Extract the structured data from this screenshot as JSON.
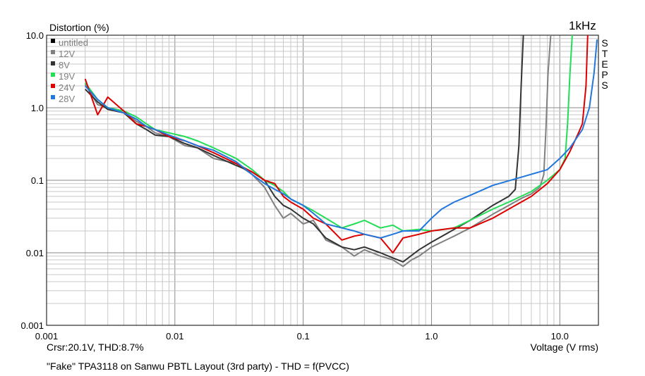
{
  "chart_data": {
    "type": "line",
    "title": "",
    "ylabel": "Distortion (%)",
    "xlabel": "Voltage (V rms)",
    "frequency_label": "1kHz",
    "side_label": "STEPS",
    "x_scale": "log",
    "y_scale": "log",
    "xlim": [
      0.001,
      20
    ],
    "ylim": [
      0.001,
      10
    ],
    "x_ticks": [
      "0.001",
      "0.01",
      "0.1",
      "1.0",
      "10.0"
    ],
    "y_ticks": [
      "10.0",
      "1.0",
      "0.1",
      "0.01",
      "0.001"
    ],
    "grid": true,
    "legend_position": "top-left",
    "cursor_readout": "Crsr:20.1V, THD:8.7%",
    "caption": "\"Fake\" TPA3118 on Sanwu PBTL Layout (3rd party) - THD = f(PVCC)",
    "series": [
      {
        "name": "untitled",
        "color": "#000000",
        "visible": false,
        "points": []
      },
      {
        "name": "12V",
        "color": "#808080",
        "points": [
          [
            0.002,
            2.1
          ],
          [
            0.0025,
            1.1
          ],
          [
            0.003,
            1.0
          ],
          [
            0.004,
            0.9
          ],
          [
            0.005,
            0.65
          ],
          [
            0.006,
            0.55
          ],
          [
            0.007,
            0.45
          ],
          [
            0.009,
            0.4
          ],
          [
            0.012,
            0.3
          ],
          [
            0.015,
            0.28
          ],
          [
            0.02,
            0.2
          ],
          [
            0.03,
            0.17
          ],
          [
            0.04,
            0.12
          ],
          [
            0.05,
            0.08
          ],
          [
            0.06,
            0.045
          ],
          [
            0.07,
            0.03
          ],
          [
            0.08,
            0.035
          ],
          [
            0.1,
            0.025
          ],
          [
            0.12,
            0.028
          ],
          [
            0.15,
            0.015
          ],
          [
            0.2,
            0.012
          ],
          [
            0.25,
            0.009
          ],
          [
            0.3,
            0.011
          ],
          [
            0.4,
            0.009
          ],
          [
            0.5,
            0.008
          ],
          [
            0.6,
            0.0065
          ],
          [
            0.7,
            0.008
          ],
          [
            0.8,
            0.009
          ],
          [
            1.0,
            0.012
          ],
          [
            1.2,
            0.014
          ],
          [
            1.5,
            0.017
          ],
          [
            2.0,
            0.022
          ],
          [
            3.0,
            0.034
          ],
          [
            4.0,
            0.045
          ],
          [
            5.0,
            0.056
          ],
          [
            6.0,
            0.065
          ],
          [
            7.0,
            0.08
          ],
          [
            7.5,
            0.12
          ],
          [
            7.8,
            0.5
          ],
          [
            8.1,
            3.0
          ],
          [
            8.5,
            10
          ]
        ]
      },
      {
        "name": "8V",
        "color": "#333333",
        "points": [
          [
            0.002,
            1.8
          ],
          [
            0.0025,
            1.2
          ],
          [
            0.003,
            0.95
          ],
          [
            0.004,
            0.85
          ],
          [
            0.005,
            0.6
          ],
          [
            0.006,
            0.5
          ],
          [
            0.007,
            0.42
          ],
          [
            0.009,
            0.4
          ],
          [
            0.012,
            0.32
          ],
          [
            0.015,
            0.28
          ],
          [
            0.02,
            0.22
          ],
          [
            0.03,
            0.16
          ],
          [
            0.04,
            0.13
          ],
          [
            0.05,
            0.1
          ],
          [
            0.06,
            0.06
          ],
          [
            0.07,
            0.045
          ],
          [
            0.08,
            0.04
          ],
          [
            0.1,
            0.03
          ],
          [
            0.12,
            0.025
          ],
          [
            0.15,
            0.016
          ],
          [
            0.2,
            0.012
          ],
          [
            0.25,
            0.011
          ],
          [
            0.3,
            0.012
          ],
          [
            0.4,
            0.01
          ],
          [
            0.5,
            0.0085
          ],
          [
            0.6,
            0.0075
          ],
          [
            0.8,
            0.011
          ],
          [
            1.0,
            0.014
          ],
          [
            1.5,
            0.021
          ],
          [
            2.0,
            0.028
          ],
          [
            3.0,
            0.045
          ],
          [
            4.0,
            0.06
          ],
          [
            4.5,
            0.075
          ],
          [
            4.8,
            0.3
          ],
          [
            5.0,
            2.0
          ],
          [
            5.2,
            10
          ]
        ]
      },
      {
        "name": "19V",
        "color": "#22dd55",
        "points": [
          [
            0.002,
            2.2
          ],
          [
            0.0025,
            1.3
          ],
          [
            0.003,
            1.0
          ],
          [
            0.004,
            0.9
          ],
          [
            0.005,
            0.75
          ],
          [
            0.006,
            0.6
          ],
          [
            0.007,
            0.5
          ],
          [
            0.009,
            0.45
          ],
          [
            0.012,
            0.4
          ],
          [
            0.015,
            0.35
          ],
          [
            0.02,
            0.28
          ],
          [
            0.03,
            0.2
          ],
          [
            0.04,
            0.14
          ],
          [
            0.05,
            0.1
          ],
          [
            0.06,
            0.085
          ],
          [
            0.07,
            0.07
          ],
          [
            0.08,
            0.055
          ],
          [
            0.1,
            0.045
          ],
          [
            0.12,
            0.038
          ],
          [
            0.15,
            0.03
          ],
          [
            0.2,
            0.022
          ],
          [
            0.25,
            0.025
          ],
          [
            0.3,
            0.028
          ],
          [
            0.4,
            0.022
          ],
          [
            0.5,
            0.024
          ],
          [
            0.6,
            0.02
          ],
          [
            0.8,
            0.021
          ],
          [
            1.0,
            0.02
          ],
          [
            1.5,
            0.022
          ],
          [
            2.0,
            0.028
          ],
          [
            3.0,
            0.04
          ],
          [
            4.0,
            0.05
          ],
          [
            6.0,
            0.07
          ],
          [
            8.0,
            0.1
          ],
          [
            10.0,
            0.14
          ],
          [
            11.0,
            0.2
          ],
          [
            11.5,
            0.6
          ],
          [
            12.0,
            3.0
          ],
          [
            12.5,
            10
          ]
        ]
      },
      {
        "name": "24V",
        "color": "#dd0000",
        "points": [
          [
            0.002,
            2.5
          ],
          [
            0.0025,
            0.8
          ],
          [
            0.003,
            1.4
          ],
          [
            0.004,
            0.9
          ],
          [
            0.005,
            0.6
          ],
          [
            0.006,
            0.55
          ],
          [
            0.007,
            0.5
          ],
          [
            0.009,
            0.4
          ],
          [
            0.012,
            0.35
          ],
          [
            0.015,
            0.3
          ],
          [
            0.02,
            0.24
          ],
          [
            0.03,
            0.17
          ],
          [
            0.04,
            0.13
          ],
          [
            0.05,
            0.1
          ],
          [
            0.06,
            0.09
          ],
          [
            0.07,
            0.06
          ],
          [
            0.08,
            0.05
          ],
          [
            0.1,
            0.04
          ],
          [
            0.12,
            0.03
          ],
          [
            0.15,
            0.025
          ],
          [
            0.2,
            0.015
          ],
          [
            0.25,
            0.017
          ],
          [
            0.3,
            0.018
          ],
          [
            0.4,
            0.016
          ],
          [
            0.5,
            0.01
          ],
          [
            0.6,
            0.016
          ],
          [
            0.8,
            0.018
          ],
          [
            1.0,
            0.02
          ],
          [
            1.5,
            0.022
          ],
          [
            2.0,
            0.022
          ],
          [
            3.0,
            0.03
          ],
          [
            4.0,
            0.04
          ],
          [
            6.0,
            0.06
          ],
          [
            8.0,
            0.09
          ],
          [
            10.0,
            0.14
          ],
          [
            12.0,
            0.25
          ],
          [
            14.0,
            0.45
          ],
          [
            15.0,
            0.6
          ],
          [
            16.0,
            2.0
          ],
          [
            16.5,
            10
          ]
        ]
      },
      {
        "name": "28V",
        "color": "#2277dd",
        "points": [
          [
            0.002,
            2.0
          ],
          [
            0.0025,
            1.3
          ],
          [
            0.003,
            1.0
          ],
          [
            0.004,
            0.85
          ],
          [
            0.005,
            0.7
          ],
          [
            0.006,
            0.55
          ],
          [
            0.007,
            0.5
          ],
          [
            0.009,
            0.42
          ],
          [
            0.012,
            0.35
          ],
          [
            0.015,
            0.3
          ],
          [
            0.02,
            0.26
          ],
          [
            0.03,
            0.18
          ],
          [
            0.04,
            0.12
          ],
          [
            0.05,
            0.09
          ],
          [
            0.06,
            0.075
          ],
          [
            0.07,
            0.065
          ],
          [
            0.08,
            0.055
          ],
          [
            0.1,
            0.045
          ],
          [
            0.12,
            0.035
          ],
          [
            0.15,
            0.025
          ],
          [
            0.2,
            0.022
          ],
          [
            0.25,
            0.02
          ],
          [
            0.3,
            0.018
          ],
          [
            0.4,
            0.016
          ],
          [
            0.5,
            0.018
          ],
          [
            0.6,
            0.02
          ],
          [
            0.8,
            0.02
          ],
          [
            1.0,
            0.03
          ],
          [
            1.2,
            0.04
          ],
          [
            1.5,
            0.05
          ],
          [
            2.0,
            0.062
          ],
          [
            3.0,
            0.085
          ],
          [
            5.0,
            0.11
          ],
          [
            8.0,
            0.14
          ],
          [
            10.0,
            0.2
          ],
          [
            12.0,
            0.28
          ],
          [
            15.0,
            0.5
          ],
          [
            17.0,
            1.0
          ],
          [
            18.5,
            3.0
          ],
          [
            19.5,
            8.7
          ]
        ]
      }
    ]
  }
}
